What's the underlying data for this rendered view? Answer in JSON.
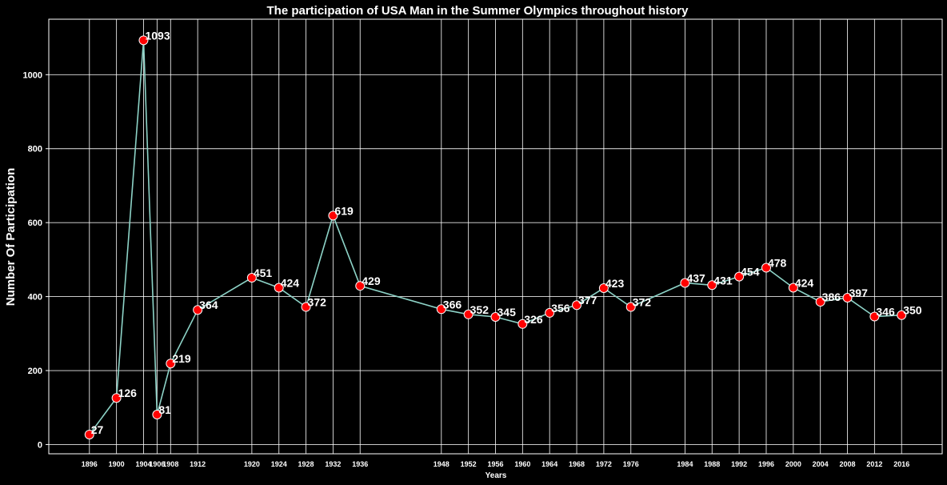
{
  "chart_data": {
    "type": "line",
    "title": "The participation of USA Man in the Summer Olympics throughout history",
    "xlabel": "Years",
    "ylabel": "Number Of Participation",
    "x": [
      1896,
      1900,
      1904,
      1906,
      1908,
      1912,
      1920,
      1924,
      1928,
      1932,
      1936,
      1948,
      1952,
      1956,
      1960,
      1964,
      1968,
      1972,
      1976,
      1984,
      1988,
      1992,
      1996,
      2000,
      2004,
      2008,
      2012,
      2016
    ],
    "series": [
      {
        "values": [
          27,
          126,
          1093,
          81,
          219,
          364,
          451,
          424,
          372,
          619,
          429,
          366,
          352,
          345,
          326,
          356,
          377,
          423,
          372,
          437,
          431,
          454,
          478,
          424,
          386,
          397,
          346,
          350
        ]
      }
    ],
    "yticks": [
      0,
      200,
      400,
      600,
      800,
      1000
    ],
    "ylim": [
      -25,
      1150
    ],
    "xlim": [
      1890,
      2022
    ],
    "grid": true,
    "colors": {
      "background": "#000000",
      "line": "#8dd3c7",
      "marker": "#ff0000",
      "text": "#ffffff",
      "grid": "#ffffff"
    }
  }
}
